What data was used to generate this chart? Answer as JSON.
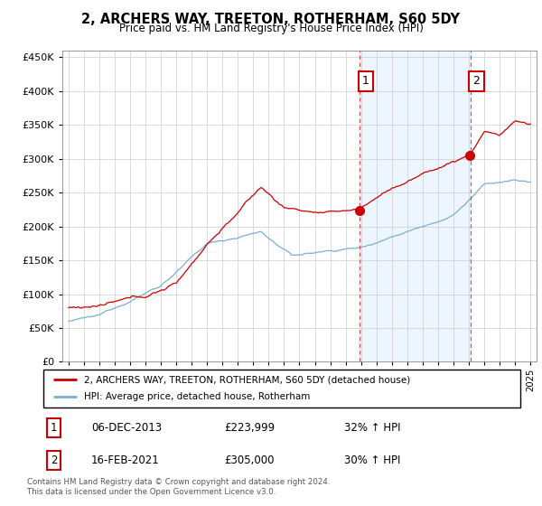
{
  "title": "2, ARCHERS WAY, TREETON, ROTHERHAM, S60 5DY",
  "subtitle": "Price paid vs. HM Land Registry's House Price Index (HPI)",
  "legend_line1": "2, ARCHERS WAY, TREETON, ROTHERHAM, S60 5DY (detached house)",
  "legend_line2": "HPI: Average price, detached house, Rotherham",
  "annotation1": {
    "label": "1",
    "date": "06-DEC-2013",
    "price": "£223,999",
    "change": "32% ↑ HPI",
    "x_year": 2013.92
  },
  "annotation2": {
    "label": "2",
    "date": "16-FEB-2021",
    "price": "£305,000",
    "change": "30% ↑ HPI",
    "x_year": 2021.12
  },
  "footer": "Contains HM Land Registry data © Crown copyright and database right 2024.\nThis data is licensed under the Open Government Licence v3.0.",
  "red_color": "#cc0000",
  "blue_color": "#7aafd4",
  "vline_color": "#dd4444",
  "shaded_color": "#ddeeff",
  "ylim": [
    0,
    460000
  ],
  "xlim_start": 1994.6,
  "xlim_end": 2025.4,
  "yticks": [
    0,
    50000,
    100000,
    150000,
    200000,
    250000,
    300000,
    350000,
    400000,
    450000
  ]
}
